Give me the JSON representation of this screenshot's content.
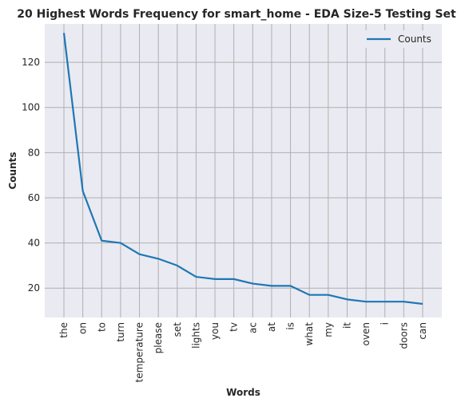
{
  "chart_data": {
    "type": "line",
    "title": "20 Highest Words Frequency for smart_home - EDA Size-5 Testing Set",
    "xlabel": "Words",
    "ylabel": "Counts",
    "categories": [
      "the",
      "on",
      "to",
      "turn",
      "temperature",
      "please",
      "set",
      "lights",
      "you",
      "tv",
      "ac",
      "at",
      "is",
      "what",
      "my",
      "it",
      "oven",
      "i",
      "doors",
      "can"
    ],
    "series": [
      {
        "name": "Counts",
        "values": [
          133,
          63,
          41,
          40,
          35,
          33,
          30,
          25,
          24,
          24,
          22,
          21,
          21,
          17,
          17,
          15,
          14,
          14,
          14,
          13
        ]
      }
    ],
    "ylim": [
      7,
      137
    ],
    "yticks": [
      20,
      40,
      60,
      80,
      100,
      120
    ],
    "grid": true,
    "legend_position": "top-right",
    "colors": {
      "line": "#1f77b4",
      "plot_background": "#eaeaf2",
      "grid": "#b0b0b0"
    }
  }
}
